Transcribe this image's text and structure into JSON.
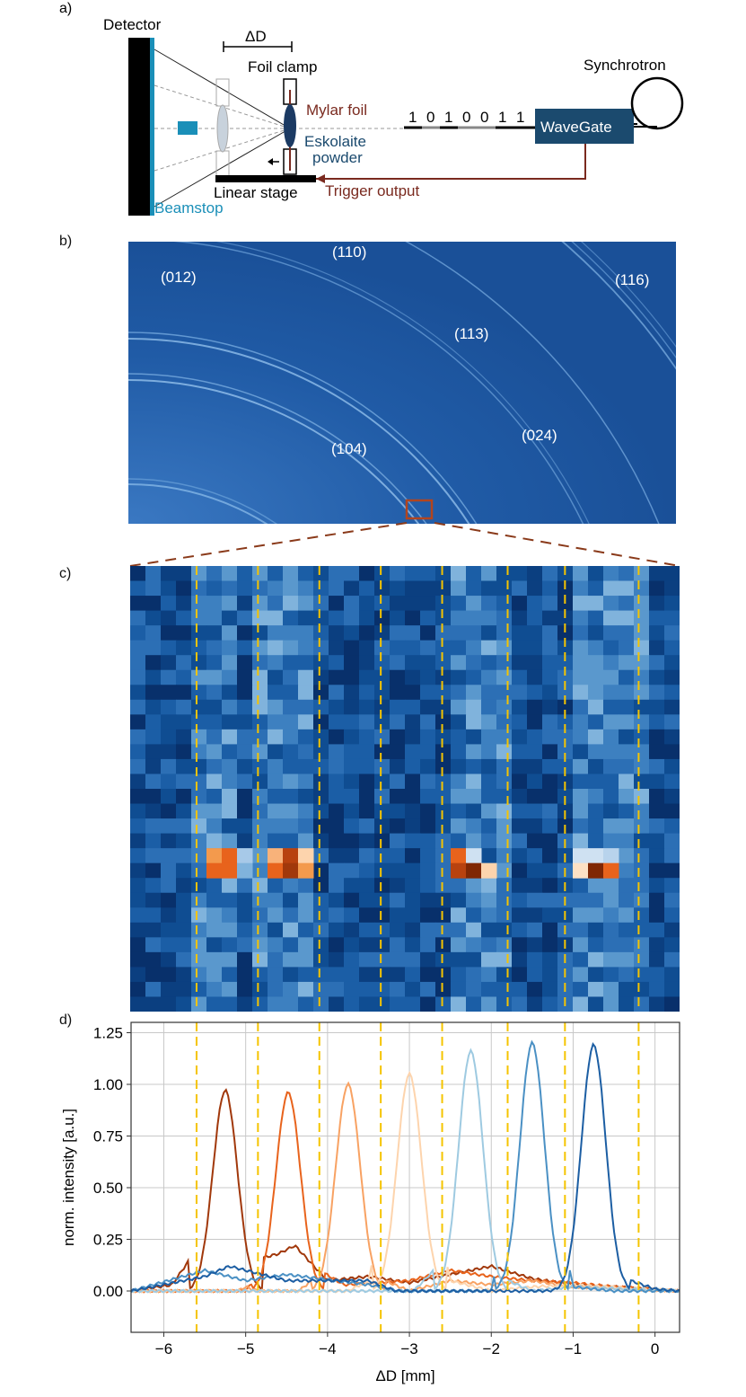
{
  "panels": {
    "a": {
      "label": "a)",
      "detector": "Detector",
      "delta_d": "ΔD",
      "foil_clamp": "Foil clamp",
      "mylar_foil": "Mylar foil",
      "eskolaite": "Eskolaite",
      "powder": "powder",
      "linear_stage": "Linear stage",
      "trigger_output": "Trigger output",
      "beamstop": "Beamstop",
      "bits": [
        "1",
        "0",
        "1",
        "0",
        "0",
        "1",
        "1"
      ],
      "wavegate": "WaveGate",
      "synchrotron": "Synchrotron"
    },
    "b": {
      "label": "b)",
      "rings": [
        "(012)",
        "(110)",
        "(116)",
        "(113)",
        "(104)",
        "(024)"
      ]
    },
    "c": {
      "label": "c)"
    },
    "d": {
      "label": "d)"
    }
  },
  "colors": {
    "detector_blue": "#1f5aa6",
    "beamstop": "#1a8fb8",
    "wavegate": "#1b4a6e",
    "trigger_red": "#7a2a1f",
    "dashed_yellow": "#f5c400"
  },
  "chart_data": {
    "type": "line",
    "xlabel": "ΔD [mm]",
    "ylabel": "norm. intensity [a.u.]",
    "xlim": [
      -6.4,
      0.3
    ],
    "ylim": [
      -0.2,
      1.3
    ],
    "xticks": [
      "−6",
      "−5",
      "−4",
      "−3",
      "−2",
      "−1",
      "0"
    ],
    "yticks": [
      "0.00",
      "0.25",
      "0.50",
      "0.75",
      "1.00",
      "1.25"
    ],
    "grid": true,
    "dashed_lines_x": [
      -5.6,
      -4.85,
      -4.1,
      -3.35,
      -2.6,
      -1.8,
      -1.1,
      -0.2
    ],
    "series": [
      {
        "color": "#a1380b",
        "peak_x": -5.25,
        "peak_y": 0.97,
        "width": 0.2,
        "x": [
          -6.4,
          -5.9,
          -5.6,
          -5.4,
          -5.25,
          -5.1,
          -4.9,
          -4.6,
          -4.4,
          -4.0,
          -3.5,
          -3.0,
          -2.5,
          -2.0,
          -1.5,
          -1.0,
          -0.5,
          0.3
        ],
        "y": [
          0,
          0.03,
          0.2,
          0.75,
          0.97,
          0.75,
          0.15,
          0.18,
          0.22,
          0.05,
          0.07,
          0.04,
          0.08,
          0.12,
          0.06,
          0.03,
          0.02,
          0
        ]
      },
      {
        "color": "#e8631c",
        "peak_x": -4.48,
        "peak_y": 0.96,
        "width": 0.2,
        "x": [
          -6.4,
          -5.5,
          -5.2,
          -4.9,
          -4.7,
          -4.48,
          -4.3,
          -4.1,
          -3.8,
          -3.0,
          -2.5,
          -2.0,
          -1.5,
          -1.0,
          -0.5,
          0.3
        ],
        "y": [
          0,
          -0.05,
          -0.1,
          0.05,
          0.55,
          0.96,
          0.6,
          0.1,
          0.03,
          0.05,
          0.1,
          0.07,
          0.05,
          0.04,
          0.02,
          0
        ]
      },
      {
        "color": "#f8a263",
        "peak_x": -3.75,
        "peak_y": 1.0,
        "width": 0.2,
        "x": [
          -6.4,
          -5.5,
          -5.0,
          -4.5,
          -4.2,
          -3.95,
          -3.75,
          -3.55,
          -3.3,
          -3.0,
          -2.5,
          -2.0,
          -1.5,
          -1.0,
          0.3
        ],
        "y": [
          0,
          -0.08,
          0.02,
          -0.05,
          0.05,
          0.6,
          1.0,
          0.6,
          0.05,
          0.0,
          0.05,
          0.03,
          0.05,
          0.02,
          0
        ]
      },
      {
        "color": "#fdd4ad",
        "peak_x": -3.0,
        "peak_y": 1.05,
        "width": 0.2,
        "x": [
          -6.4,
          -5.5,
          -5.0,
          -4.5,
          -4.0,
          -3.5,
          -3.2,
          -3.0,
          -2.8,
          -2.5,
          -2.0,
          -1.5,
          -1.0,
          0.3
        ],
        "y": [
          0,
          -0.1,
          -0.05,
          -0.15,
          -0.05,
          0.05,
          0.6,
          1.05,
          0.6,
          0.05,
          0.0,
          0.02,
          0.03,
          0
        ]
      },
      {
        "color": "#9ecae1",
        "peak_x": -2.25,
        "peak_y": 1.16,
        "width": 0.2,
        "x": [
          -6.4,
          -5.5,
          -5.0,
          -4.0,
          -3.0,
          -2.7,
          -2.45,
          -2.25,
          -2.05,
          -1.8,
          -1.5,
          -1.0,
          0.3
        ],
        "y": [
          0,
          -0.05,
          -0.02,
          -0.03,
          -0.02,
          0.1,
          0.7,
          1.16,
          0.7,
          0.05,
          0.0,
          0.02,
          0
        ]
      },
      {
        "color": "#4a90c4",
        "peak_x": -1.5,
        "peak_y": 1.2,
        "width": 0.2,
        "x": [
          -6.4,
          -5.5,
          -5.0,
          -4.5,
          -3.5,
          -2.5,
          -2.0,
          -1.7,
          -1.5,
          -1.3,
          -1.0,
          -0.5,
          0.3
        ],
        "y": [
          0,
          0.1,
          0.05,
          0.08,
          0.03,
          -0.05,
          0.0,
          0.6,
          1.2,
          0.6,
          0.02,
          0.0,
          0
        ]
      },
      {
        "color": "#1c5ea3",
        "peak_x": -0.75,
        "peak_y": 1.19,
        "width": 0.2,
        "x": [
          -6.4,
          -5.5,
          -5.2,
          -4.5,
          -3.5,
          -2.5,
          -1.5,
          -1.2,
          -0.95,
          -0.75,
          -0.55,
          -0.3,
          0.0,
          0.3
        ],
        "y": [
          0,
          0.07,
          0.12,
          0.05,
          0.05,
          -0.1,
          -0.05,
          0.0,
          0.6,
          1.19,
          0.6,
          0.05,
          0.01,
          0
        ]
      }
    ]
  }
}
